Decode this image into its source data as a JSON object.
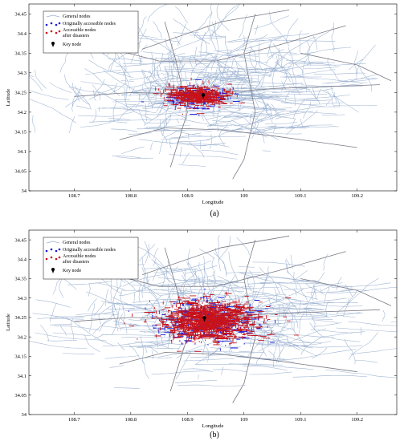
{
  "chart_data": [
    {
      "panel": "(a)",
      "type": "scatter",
      "title": "",
      "xlabel": "Longitude",
      "ylabel": "Latitude",
      "xlim": [
        108.62,
        109.27
      ],
      "ylim": [
        34.0,
        34.475
      ],
      "xticks": [
        108.7,
        108.8,
        108.9,
        109,
        109.1,
        109.2
      ],
      "yticks": [
        34,
        34.05,
        34.1,
        34.15,
        34.2,
        34.25,
        34.3,
        34.35,
        34.4,
        34.45
      ],
      "grid": false,
      "legend_position": "top-left",
      "series": [
        {
          "name": "General nodes",
          "color": "#9ab0d0",
          "extent": {
            "x": [
              108.63,
              109.26
            ],
            "y": [
              34.04,
              34.47
            ]
          }
        },
        {
          "name": "Originally accessible nodes",
          "color": "#1a1adc",
          "center": [
            108.915,
            34.235
          ],
          "spread": [
            0.05,
            0.025
          ]
        },
        {
          "name": "Accessible nodes after disasters",
          "color": "#c8121a",
          "center": [
            108.915,
            34.24
          ],
          "spread": [
            0.045,
            0.022
          ]
        },
        {
          "name": "Key node",
          "color": "#000000",
          "point": [
            108.928,
            34.24
          ]
        }
      ],
      "legend": [
        "General nodes",
        "Originally accessible nodes",
        "Accessible nodes",
        "after disasters",
        "Key node"
      ],
      "caption": "(a)"
    },
    {
      "panel": "(b)",
      "type": "scatter",
      "title": "",
      "xlabel": "Longitude",
      "ylabel": "Latitude",
      "xlim": [
        108.62,
        109.27
      ],
      "ylim": [
        34.0,
        34.475
      ],
      "xticks": [
        108.7,
        108.8,
        108.9,
        109,
        109.1,
        109.2
      ],
      "yticks": [
        34,
        34.05,
        34.1,
        34.15,
        34.2,
        34.25,
        34.3,
        34.35,
        34.4,
        34.45
      ],
      "grid": false,
      "legend_position": "top-left",
      "series": [
        {
          "name": "General nodes",
          "color": "#9ab0d0",
          "extent": {
            "x": [
              108.63,
              109.26
            ],
            "y": [
              34.04,
              34.47
            ]
          }
        },
        {
          "name": "Originally accessible nodes",
          "color": "#1a1adc",
          "center": [
            108.935,
            34.235
          ],
          "spread": [
            0.075,
            0.05
          ]
        },
        {
          "name": "Accessible nodes after disasters",
          "color": "#c8121a",
          "center": [
            108.935,
            34.24
          ],
          "spread": [
            0.07,
            0.045
          ]
        },
        {
          "name": "Key node",
          "color": "#000000",
          "point": [
            108.93,
            34.245
          ]
        }
      ],
      "legend": [
        "General nodes",
        "Originally accessible nodes",
        "Accessible nodes",
        "after disasters",
        "Key node"
      ],
      "caption": "(b)"
    }
  ]
}
